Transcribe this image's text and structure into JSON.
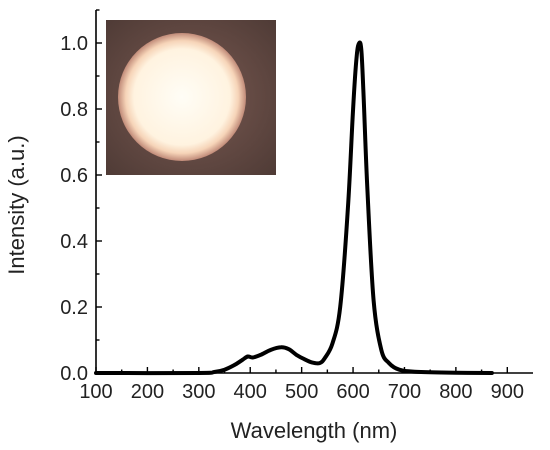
{
  "chart_data": {
    "type": "line",
    "xlabel": "Wavelength (nm)",
    "ylabel": "Intensity (a.u.)",
    "xlim": [
      100,
      950
    ],
    "ylim": [
      0,
      1.1
    ],
    "x_ticks": [
      "100",
      "200",
      "300",
      "400",
      "500",
      "600",
      "700",
      "800",
      "900"
    ],
    "y_ticks": [
      "0.0",
      "0.2",
      "0.4",
      "0.6",
      "0.8",
      "1.0"
    ],
    "grid": false,
    "inset": "photo of glowing circular light source, top-left",
    "series": [
      {
        "x": [
          100,
          300,
          330,
          350,
          370,
          385,
          395,
          405,
          420,
          440,
          460,
          475,
          490,
          505,
          520,
          535,
          545,
          560,
          575,
          590,
          600,
          607,
          612,
          616,
          620,
          628,
          640,
          655,
          670,
          690,
          720,
          800,
          870
        ],
        "y": [
          0.0,
          0.0,
          0.003,
          0.01,
          0.025,
          0.04,
          0.05,
          0.047,
          0.055,
          0.07,
          0.078,
          0.072,
          0.055,
          0.042,
          0.032,
          0.03,
          0.045,
          0.09,
          0.2,
          0.5,
          0.8,
          0.96,
          1.0,
          0.98,
          0.86,
          0.55,
          0.22,
          0.07,
          0.03,
          0.01,
          0.004,
          0.001,
          0.0
        ]
      }
    ]
  }
}
